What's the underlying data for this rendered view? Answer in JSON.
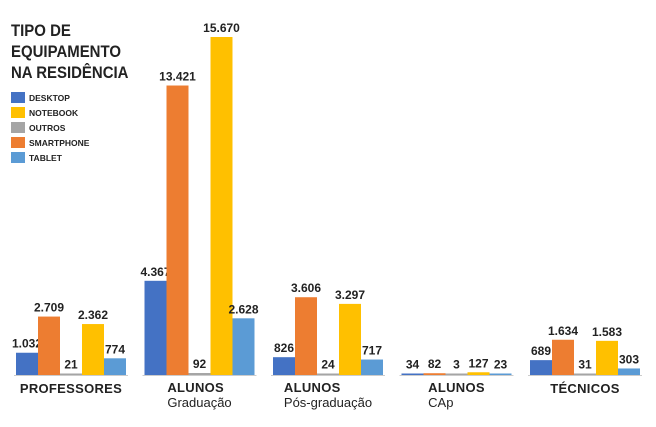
{
  "chart_data": {
    "type": "bar",
    "title": "TIPO DE EQUIPAMENTO NA RESIDÊNCIA",
    "title_lines": [
      "TIPO DE",
      "EQUIPAMENTO",
      "NA RESIDÊNCIA"
    ],
    "legend": [
      {
        "name": "DESKTOP",
        "color": "#4472c4"
      },
      {
        "name": "NOTEBOOK",
        "color": "#ffc000"
      },
      {
        "name": "OUTROS",
        "color": "#a5a5a5"
      },
      {
        "name": "SMARTPHONE",
        "color": "#ed7d31"
      },
      {
        "name": "TABLET",
        "color": "#5b9bd5"
      }
    ],
    "legend_placement": "top-left",
    "bar_order": [
      "DESKTOP",
      "SMARTPHONE",
      "OUTROS",
      "NOTEBOOK",
      "TABLET"
    ],
    "categories": [
      {
        "label": "PROFESSORES",
        "sub": ""
      },
      {
        "label": "ALUNOS",
        "sub": "Graduação"
      },
      {
        "label": "ALUNOS",
        "sub": "Pós-graduação"
      },
      {
        "label": "ALUNOS",
        "sub": "CAp"
      },
      {
        "label": "TÉCNICOS",
        "sub": ""
      }
    ],
    "series": [
      {
        "name": "DESKTOP",
        "values": [
          1032,
          4367,
          826,
          34,
          689
        ],
        "labels": [
          "1.032",
          "4.367",
          "826",
          "34",
          "689"
        ]
      },
      {
        "name": "SMARTPHONE",
        "values": [
          2709,
          13421,
          3606,
          82,
          1634
        ],
        "labels": [
          "2.709",
          "13.421",
          "3.606",
          "82",
          "1.634"
        ]
      },
      {
        "name": "OUTROS",
        "values": [
          21,
          92,
          24,
          3,
          31
        ],
        "labels": [
          "21",
          "92",
          "24",
          "3",
          "31"
        ]
      },
      {
        "name": "NOTEBOOK",
        "values": [
          2362,
          15670,
          3297,
          127,
          1583
        ],
        "labels": [
          "2.362",
          "15.670",
          "3.297",
          "127",
          "1.583"
        ]
      },
      {
        "name": "TABLET",
        "values": [
          774,
          2628,
          717,
          23,
          303
        ],
        "labels": [
          "774",
          "2.628",
          "717",
          "23",
          "303"
        ]
      }
    ],
    "ylim": [
      0,
      16000
    ],
    "grid": false
  }
}
